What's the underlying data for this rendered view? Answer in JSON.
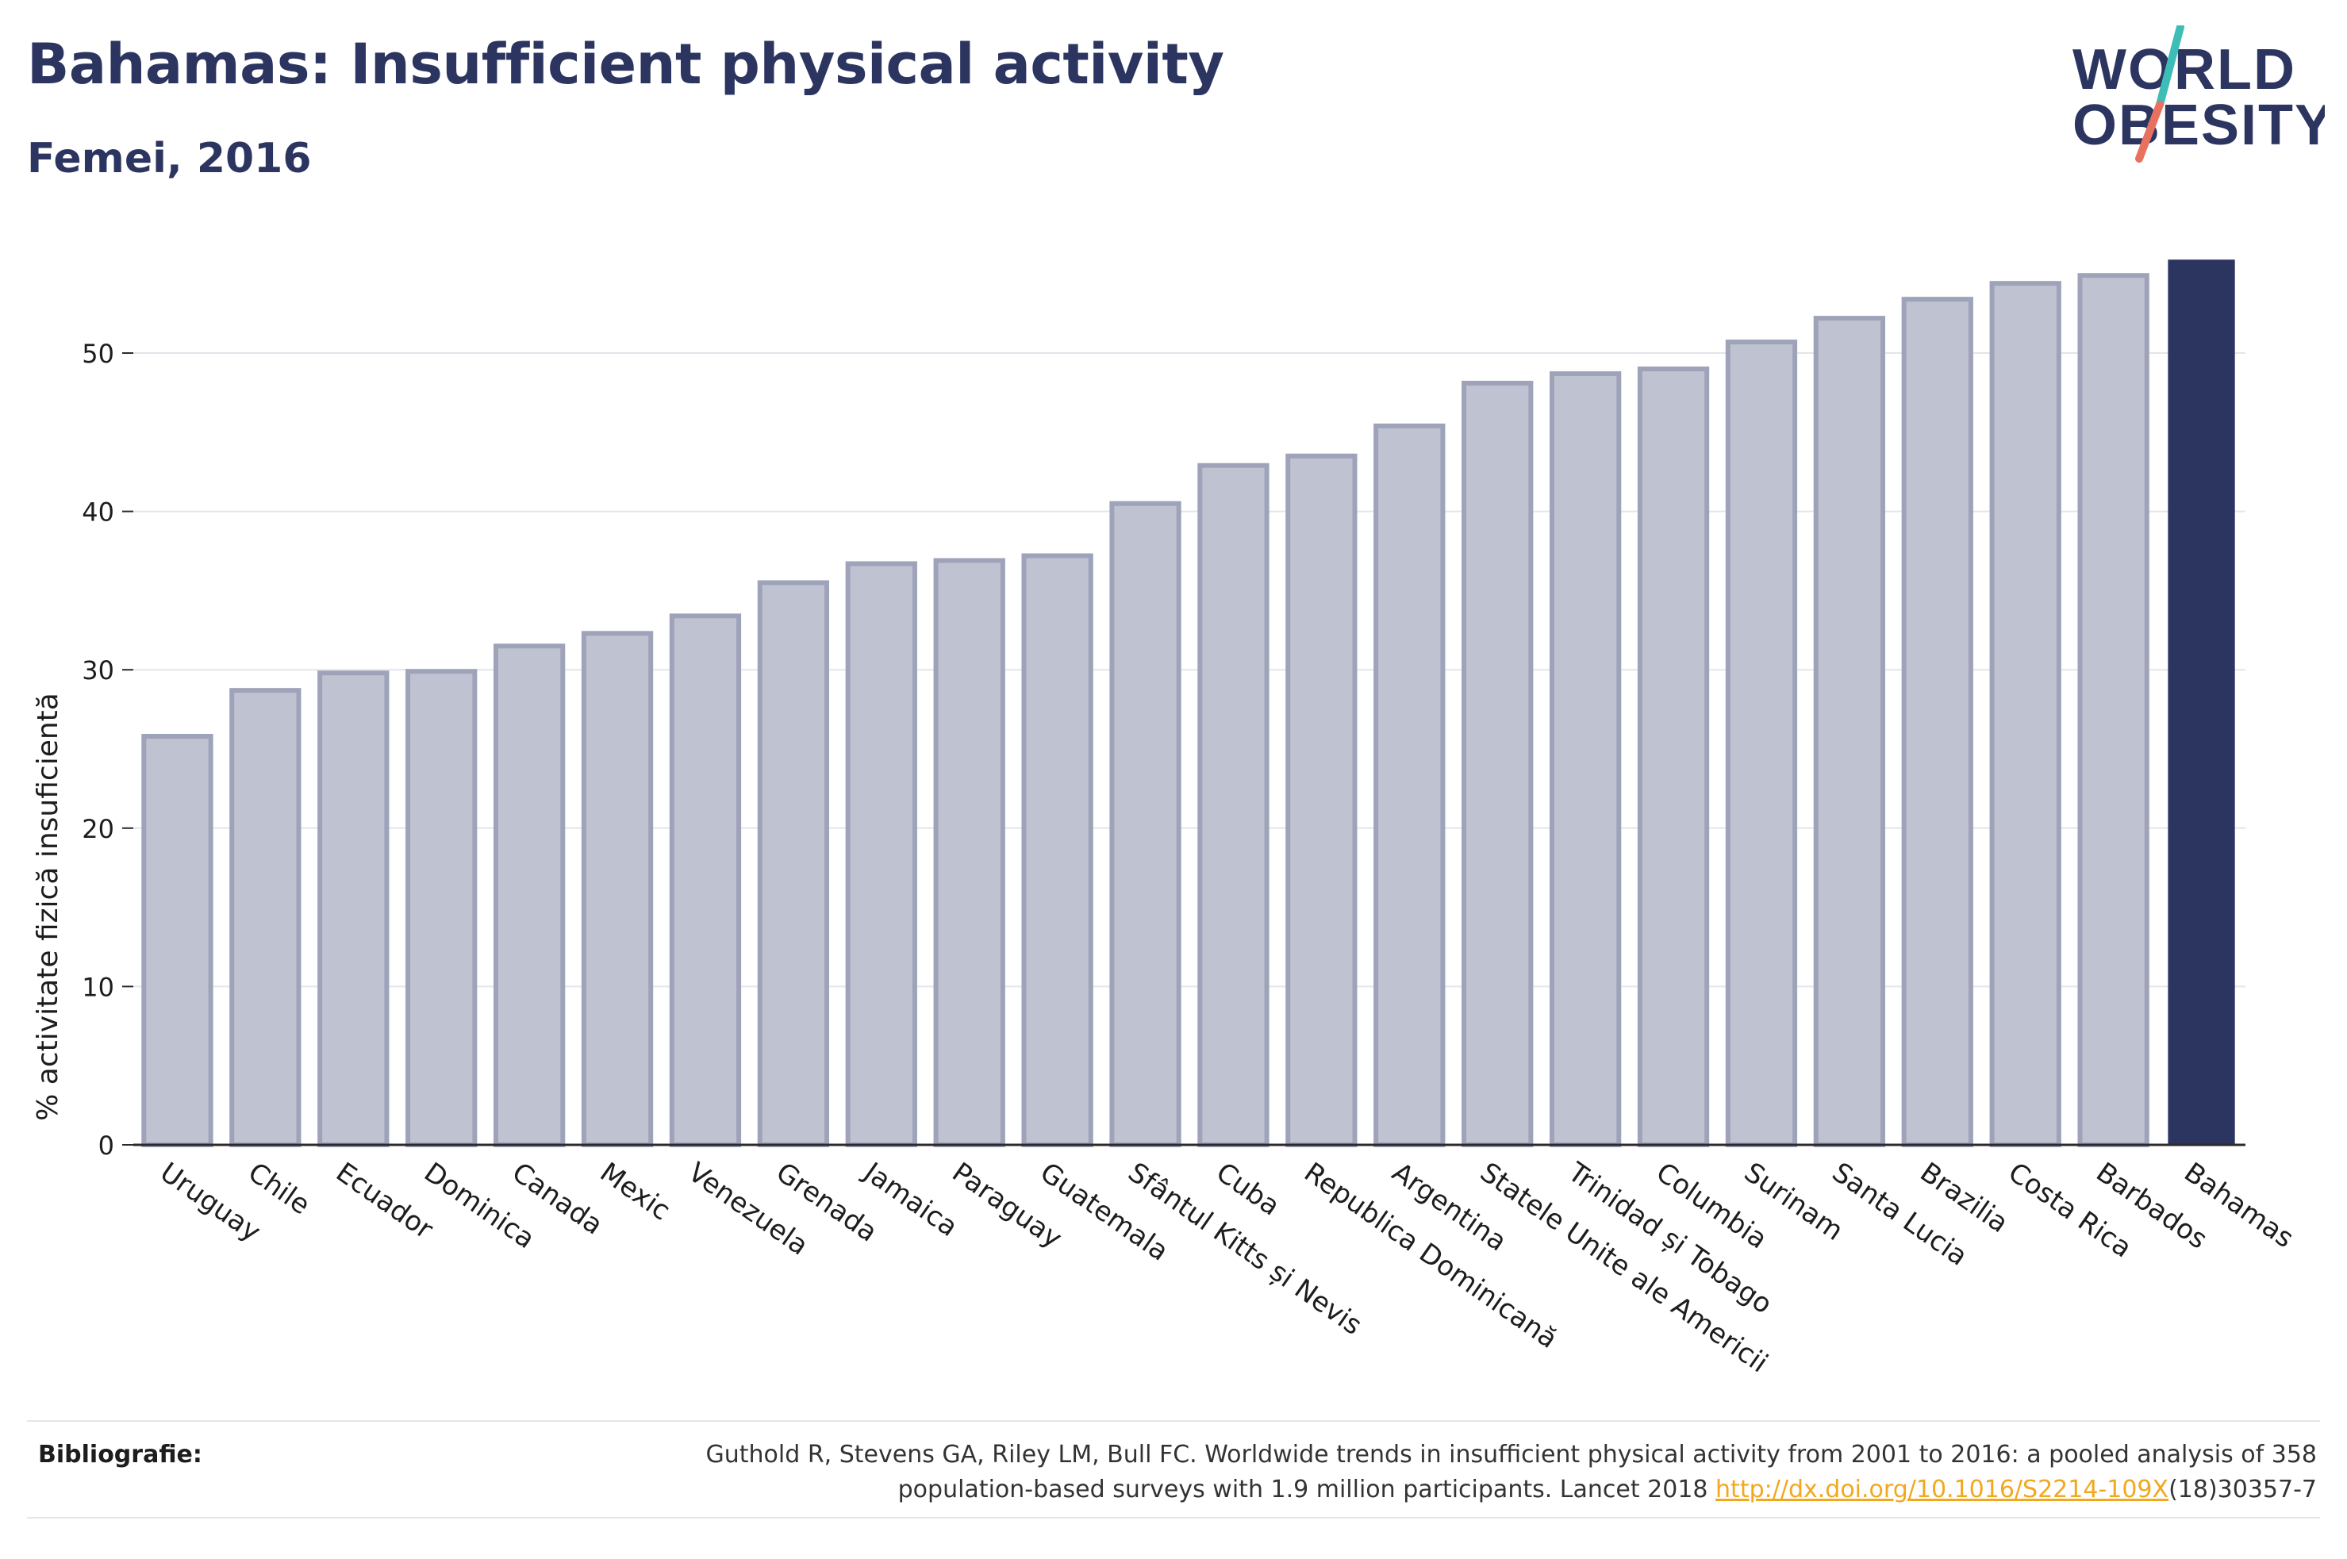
{
  "header": {
    "title": "Bahamas: Insufficient physical activity",
    "subtitle": "Femei, 2016"
  },
  "logo": {
    "line1": "WORLD",
    "line2": "OBESITY",
    "text_color": "#2b3560",
    "slash_top_color": "#3dbdb6",
    "slash_bottom_color": "#e8705f"
  },
  "chart_data": {
    "type": "bar",
    "ylabel": "% activitate fizică insuficientă",
    "xlabel": "",
    "ylim": [
      0,
      57.5
    ],
    "yticks": [
      0,
      10,
      20,
      30,
      40,
      50
    ],
    "grid": true,
    "categories": [
      "Uruguay",
      "Chile",
      "Ecuador",
      "Dominica",
      "Canada",
      "Mexic",
      "Venezuela",
      "Grenada",
      "Jamaica",
      "Paraguay",
      "Guatemala",
      "Sfântul Kitts și Nevis",
      "Cuba",
      "Republica Dominicană",
      "Argentina",
      "Statele Unite ale Americii",
      "Trinidad și Tobago",
      "Columbia",
      "Surinam",
      "Santa Lucia",
      "Brazilia",
      "Costa Rica",
      "Barbados",
      "Bahamas"
    ],
    "values": [
      25.8,
      28.7,
      29.8,
      29.9,
      31.5,
      32.3,
      33.4,
      35.5,
      36.7,
      36.9,
      37.2,
      40.5,
      42.9,
      43.5,
      45.4,
      48.1,
      48.7,
      49.0,
      50.7,
      52.2,
      53.4,
      54.4,
      54.9,
      55.9
    ],
    "highlight": "Bahamas",
    "colors": {
      "bar": "#bfc2d0",
      "bar_edge": "#9ea3ba",
      "highlight": "#2b3560",
      "grid": "#e4e5ec",
      "axis": "#2b2b2b"
    }
  },
  "footer": {
    "bib_label": "Bibliografie:",
    "citation_line1": "Guthold R, Stevens GA, Riley LM, Bull FC. Worldwide trends in insufficient physical activity from 2001 to 2016: a pooled analysis of 358",
    "citation_line2_pre": "population-based surveys with 1.9 million participants. Lancet 2018 ",
    "citation_link": "http://dx.doi.org/10.1016/S2214-109X",
    "citation_line2_post": "(18)30357-7"
  }
}
